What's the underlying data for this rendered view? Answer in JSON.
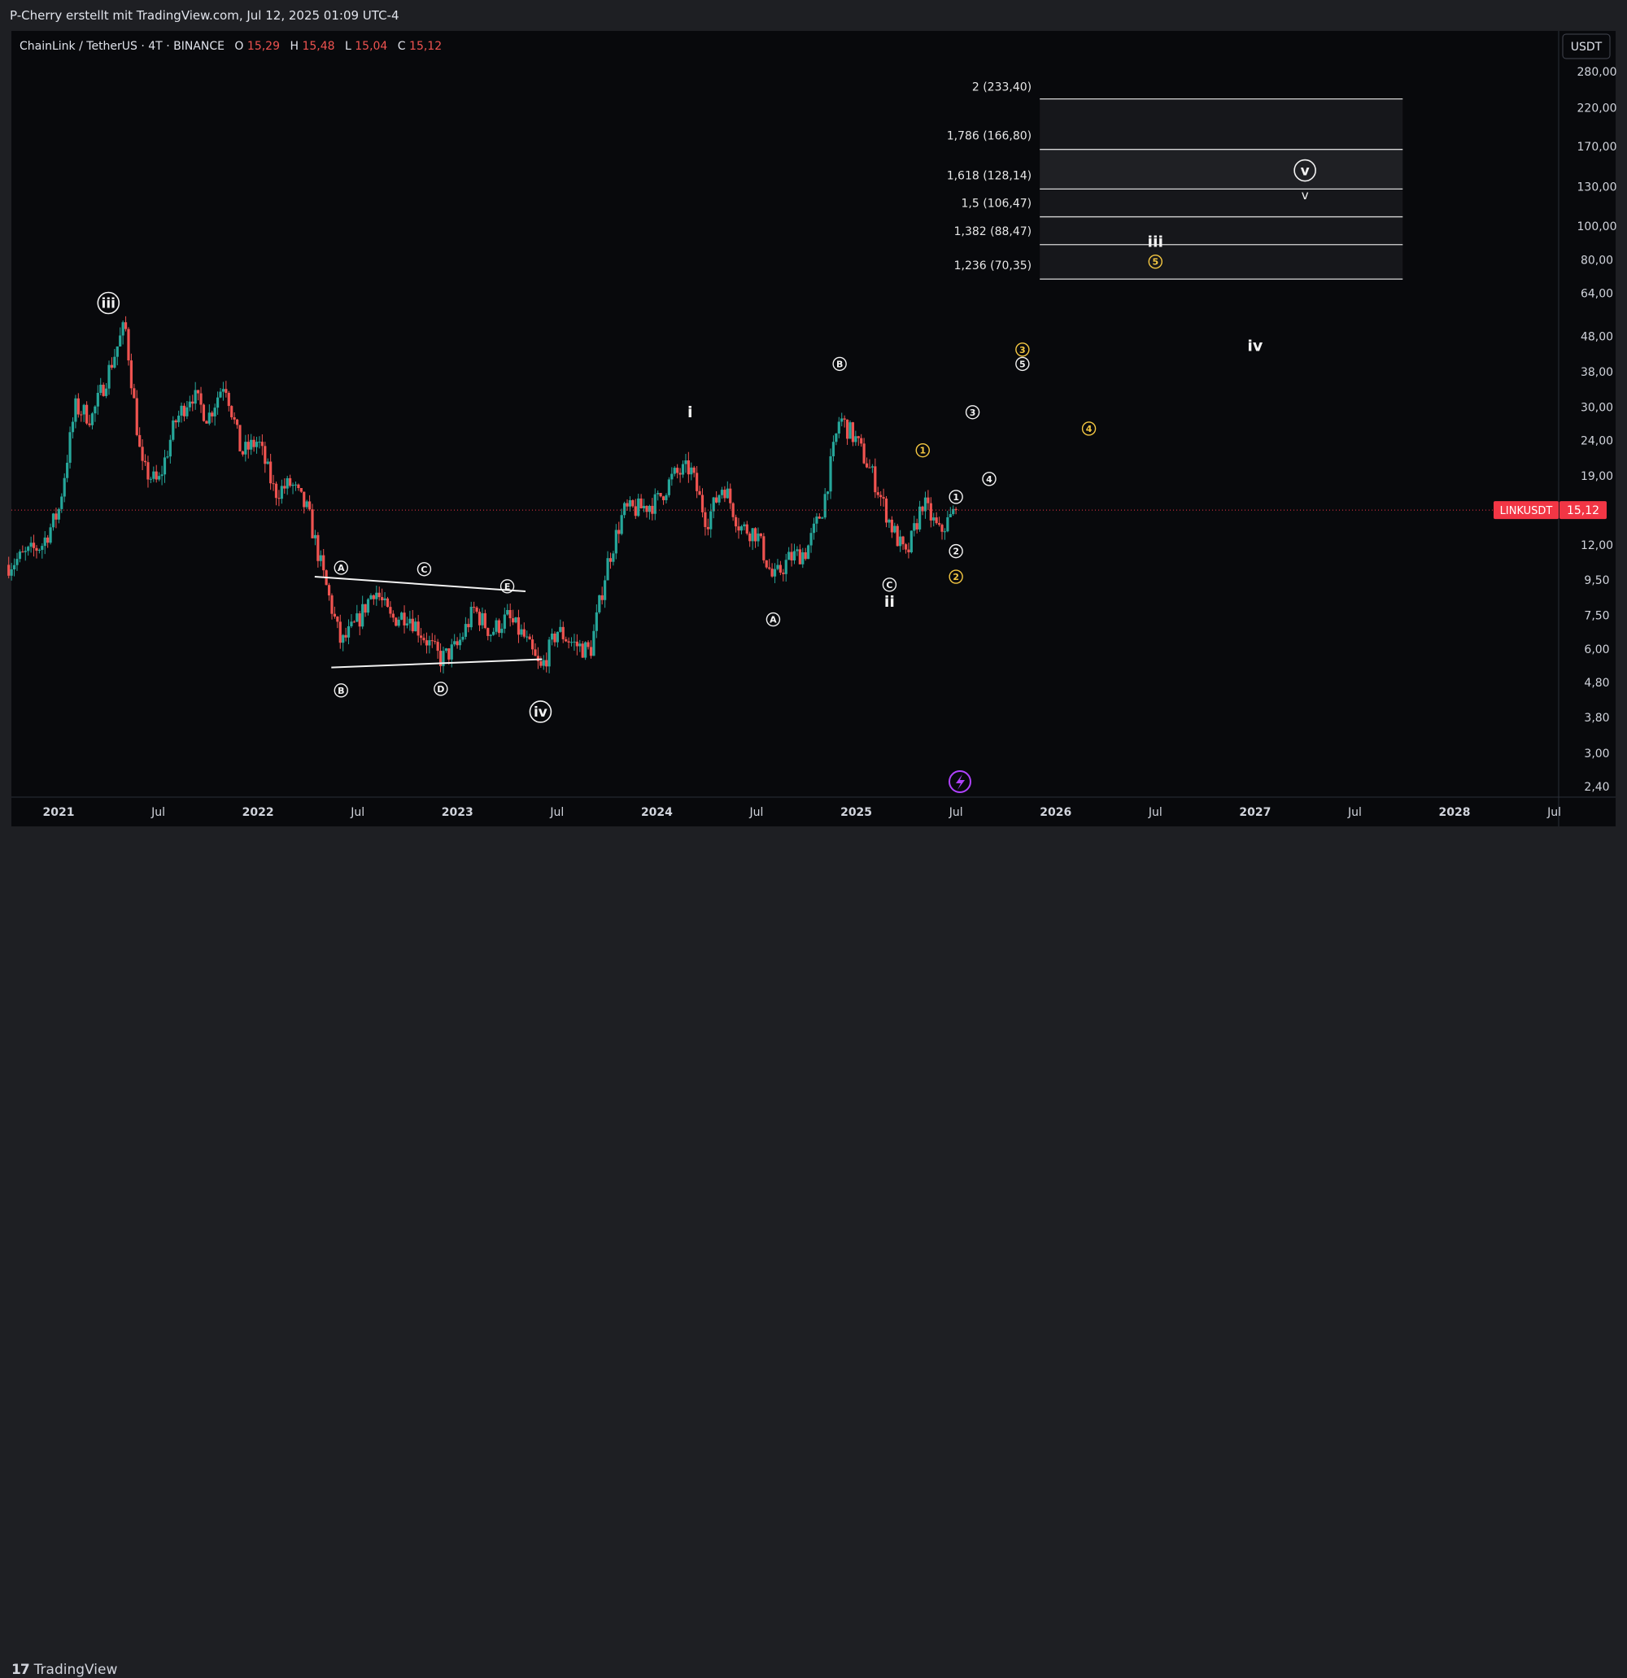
{
  "header": {
    "attribution": "P-Cherry erstellt mit TradingView.com, Jul 12, 2025 01:09 UTC-4"
  },
  "symbol": {
    "name": "ChainLink / TetherUS · 4T · BINANCE",
    "open_label": "O",
    "open": "15,29",
    "high_label": "H",
    "high": "15,48",
    "low_label": "L",
    "low": "15,04",
    "close_label": "C",
    "close": "15,12"
  },
  "currency": "USDT",
  "price_tag": {
    "ticker": "LINKUSDT",
    "price": "15,12",
    "value": 15.12
  },
  "footer": {
    "brand": "TradingView"
  },
  "colors": {
    "up": "#26a69a",
    "down": "#ef5350",
    "background": "#08090c",
    "label_yellow": "#f5c842",
    "tag_red": "#f23645"
  },
  "chart_data": {
    "type": "candlestick",
    "scale": "log",
    "ylim": [
      2.2,
      320
    ],
    "xlim": [
      "2020-10",
      "2028-07"
    ],
    "y_ticks": [
      {
        "v": 280,
        "label": "280,00"
      },
      {
        "v": 220,
        "label": "220,00"
      },
      {
        "v": 170,
        "label": "170,00"
      },
      {
        "v": 130,
        "label": "130,00"
      },
      {
        "v": 100,
        "label": "100,00"
      },
      {
        "v": 80,
        "label": "80,00"
      },
      {
        "v": 64,
        "label": "64,00"
      },
      {
        "v": 48,
        "label": "48,00"
      },
      {
        "v": 38,
        "label": "38,00"
      },
      {
        "v": 30,
        "label": "30,00"
      },
      {
        "v": 24,
        "label": "24,00"
      },
      {
        "v": 19,
        "label": "19,00"
      },
      {
        "v": 12,
        "label": "12,00"
      },
      {
        "v": 9.5,
        "label": "9,50"
      },
      {
        "v": 7.5,
        "label": "7,50"
      },
      {
        "v": 6,
        "label": "6,00"
      },
      {
        "v": 4.8,
        "label": "4,80"
      },
      {
        "v": 3.8,
        "label": "3,80"
      },
      {
        "v": 3,
        "label": "3,00"
      },
      {
        "v": 2.4,
        "label": "2,40"
      }
    ],
    "x_ticks": [
      {
        "t": "2021-01",
        "label": "2021",
        "major": true
      },
      {
        "t": "2021-07",
        "label": "Jul",
        "major": false
      },
      {
        "t": "2022-01",
        "label": "2022",
        "major": true
      },
      {
        "t": "2022-07",
        "label": "Jul",
        "major": false
      },
      {
        "t": "2023-01",
        "label": "2023",
        "major": true
      },
      {
        "t": "2023-07",
        "label": "Jul",
        "major": false
      },
      {
        "t": "2024-01",
        "label": "2024",
        "major": true
      },
      {
        "t": "2024-07",
        "label": "Jul",
        "major": false
      },
      {
        "t": "2025-01",
        "label": "2025",
        "major": true
      },
      {
        "t": "2025-07",
        "label": "Jul",
        "major": false
      },
      {
        "t": "2026-01",
        "label": "2026",
        "major": true
      },
      {
        "t": "2026-07",
        "label": "Jul",
        "major": false
      },
      {
        "t": "2027-01",
        "label": "2027",
        "major": true
      },
      {
        "t": "2027-07",
        "label": "Jul",
        "major": false
      },
      {
        "t": "2028-01",
        "label": "2028",
        "major": true
      },
      {
        "t": "2028-07",
        "label": "Jul",
        "major": false
      }
    ],
    "price_path": [
      [
        "2020-10",
        10.5
      ],
      [
        "2020-12",
        12
      ],
      [
        "2021-01",
        15
      ],
      [
        "2021-02",
        30
      ],
      [
        "2021-03",
        28
      ],
      [
        "2021-04",
        38
      ],
      [
        "2021-05",
        52
      ],
      [
        "2021-06",
        20
      ],
      [
        "2021-07",
        18
      ],
      [
        "2021-08",
        27
      ],
      [
        "2021-09",
        33
      ],
      [
        "2021-10",
        28
      ],
      [
        "2021-11",
        36
      ],
      [
        "2021-12",
        22
      ],
      [
        "2022-01",
        24
      ],
      [
        "2022-02",
        17
      ],
      [
        "2022-03",
        18
      ],
      [
        "2022-04",
        15
      ],
      [
        "2022-05",
        9.5
      ],
      [
        "2022-06",
        6.2
      ],
      [
        "2022-07",
        7.2
      ],
      [
        "2022-08",
        9
      ],
      [
        "2022-09",
        7.3
      ],
      [
        "2022-10",
        7.6
      ],
      [
        "2022-11",
        6.5
      ],
      [
        "2022-12",
        5.6
      ],
      [
        "2023-01",
        6.1
      ],
      [
        "2023-02",
        7.8
      ],
      [
        "2023-03",
        6.7
      ],
      [
        "2023-04",
        7.4
      ],
      [
        "2023-05",
        6.5
      ],
      [
        "2023-06",
        5.2
      ],
      [
        "2023-07",
        6.8
      ],
      [
        "2023-08",
        6.2
      ],
      [
        "2023-09",
        5.9
      ],
      [
        "2023-10",
        10.5
      ],
      [
        "2023-11",
        15
      ],
      [
        "2023-12",
        15.3
      ],
      [
        "2024-01",
        16
      ],
      [
        "2024-02",
        19
      ],
      [
        "2024-03",
        20
      ],
      [
        "2024-04",
        14
      ],
      [
        "2024-05",
        18
      ],
      [
        "2024-06",
        13.5
      ],
      [
        "2024-07",
        13
      ],
      [
        "2024-08",
        9.5
      ],
      [
        "2024-09",
        11
      ],
      [
        "2024-10",
        11.5
      ],
      [
        "2024-11",
        15.5
      ],
      [
        "2024-12",
        28
      ],
      [
        "2025-01",
        24
      ],
      [
        "2025-02",
        19
      ],
      [
        "2025-03",
        14
      ],
      [
        "2025-04",
        11
      ],
      [
        "2025-05",
        16
      ],
      [
        "2025-06",
        13
      ],
      [
        "2025-07",
        15.12
      ]
    ],
    "fib_levels": [
      {
        "label": "2 (233,40)",
        "value": 233.4
      },
      {
        "label": "1,786 (166,80)",
        "value": 166.8
      },
      {
        "label": "1,618 (128,14)",
        "value": 128.14
      },
      {
        "label": "1,5 (106,47)",
        "value": 106.47
      },
      {
        "label": "1,382 (88,47)",
        "value": 88.47
      },
      {
        "label": "1,236 (70,35)",
        "value": 70.35
      }
    ],
    "fib_range": {
      "from": "2026-02",
      "to": "2027-09"
    },
    "triangle_lines": [
      {
        "from": [
          "2022-05",
          9.7
        ],
        "to": [
          "2023-05",
          8.8
        ]
      },
      {
        "from": [
          "2022-06",
          5.3
        ],
        "to": [
          "2023-06",
          5.6
        ]
      }
    ],
    "wave_labels": [
      {
        "text": "iii",
        "t": "2021-04",
        "p": 60,
        "style": "circle-roman"
      },
      {
        "text": "A",
        "t": "2022-06",
        "p": 10.3,
        "style": "circle-small"
      },
      {
        "text": "B",
        "t": "2022-06",
        "p": 4.55,
        "style": "circle-small"
      },
      {
        "text": "C",
        "t": "2022-11",
        "p": 10.2,
        "style": "circle-small"
      },
      {
        "text": "D",
        "t": "2022-12",
        "p": 4.6,
        "style": "circle-small"
      },
      {
        "text": "E",
        "t": "2023-04",
        "p": 9.1,
        "style": "circle-small"
      },
      {
        "text": "iv",
        "t": "2023-06",
        "p": 3.95,
        "style": "circle-roman"
      },
      {
        "text": "i",
        "t": "2024-03",
        "p": 29,
        "style": "plain"
      },
      {
        "text": "A",
        "t": "2024-08",
        "p": 7.3,
        "style": "circle-small"
      },
      {
        "text": "B",
        "t": "2024-12",
        "p": 40,
        "style": "circle-small"
      },
      {
        "text": "C",
        "t": "2025-03",
        "p": 9.2,
        "style": "circle-small"
      },
      {
        "text": "ii",
        "t": "2025-03",
        "p": 8.2,
        "style": "plain"
      },
      {
        "text": "1",
        "t": "2025-07",
        "p": 16.5,
        "style": "circle-small"
      },
      {
        "text": "2",
        "t": "2025-07",
        "p": 11.5,
        "style": "circle-small"
      },
      {
        "text": "3",
        "t": "2025-08",
        "p": 29,
        "style": "circle-small"
      },
      {
        "text": "4",
        "t": "2025-09",
        "p": 18.6,
        "style": "circle-small"
      },
      {
        "text": "5",
        "t": "2025-11",
        "p": 40,
        "style": "circle-small"
      },
      {
        "text": "1",
        "t": "2025-05",
        "p": 22.5,
        "style": "circle-yellow"
      },
      {
        "text": "2",
        "t": "2025-07",
        "p": 9.7,
        "style": "circle-yellow"
      },
      {
        "text": "3",
        "t": "2025-11",
        "p": 44,
        "style": "circle-yellow"
      },
      {
        "text": "4",
        "t": "2026-03",
        "p": 26,
        "style": "circle-yellow"
      },
      {
        "text": "5",
        "t": "2026-07",
        "p": 79,
        "style": "circle-yellow"
      },
      {
        "text": "iii",
        "t": "2026-07",
        "p": 90,
        "style": "plain"
      },
      {
        "text": "iv",
        "t": "2027-01",
        "p": 45,
        "style": "plain"
      },
      {
        "text": "v",
        "t": "2027-04",
        "p": 145,
        "style": "circle-roman"
      },
      {
        "text": "v",
        "t": "2027-04",
        "p": 123,
        "style": "plain-small"
      }
    ]
  }
}
